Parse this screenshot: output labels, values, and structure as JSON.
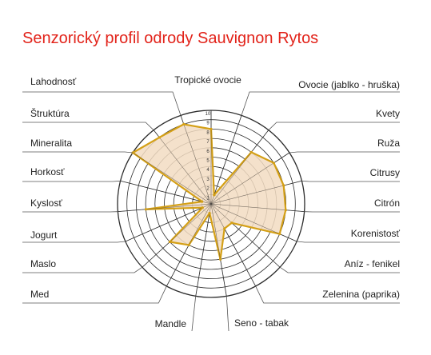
{
  "chart_data": {
    "type": "radar",
    "title": "Senzorický profil odrody Sauvignon Rytos",
    "rmin": 0,
    "rmax": 10,
    "rings": 10,
    "tick_labels": [
      "1",
      "2",
      "3",
      "4",
      "5",
      "6",
      "7",
      "8",
      "9",
      "10"
    ],
    "axes": [
      {
        "label": "Tropické ovocie",
        "value": 8
      },
      {
        "label": "Ovocie (jablko - hruška)",
        "value": 1
      },
      {
        "label": "Kvety",
        "value": 7
      },
      {
        "label": "Ruža",
        "value": 8
      },
      {
        "label": "Citrusy",
        "value": 8
      },
      {
        "label": "Citrón",
        "value": 8
      },
      {
        "label": "Korenistosť",
        "value": 8
      },
      {
        "label": "Aníz - fenikel",
        "value": 3
      },
      {
        "label": "Zelenina (paprika)",
        "value": 3
      },
      {
        "label": "Seno - tabak",
        "value": 6
      },
      {
        "label": "Mandle",
        "value": 1
      },
      {
        "label": "Med",
        "value": 5
      },
      {
        "label": "Maslo",
        "value": 6
      },
      {
        "label": "Jogurt",
        "value": 1
      },
      {
        "label": "Kyslosť",
        "value": 7
      },
      {
        "label": "Horkosť",
        "value": 1
      },
      {
        "label": "Mineralita",
        "value": 10
      },
      {
        "label": "Štruktúra",
        "value": 9
      },
      {
        "label": "Lahodnosť",
        "value": 9
      }
    ],
    "colors": {
      "line": "#d4a017",
      "fill": "#f2dcc2",
      "grid": "#2b2b2b",
      "title": "#e2231a"
    }
  }
}
